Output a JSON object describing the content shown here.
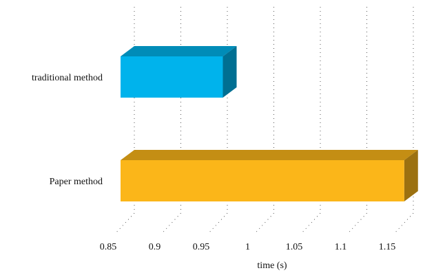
{
  "chart_data": {
    "type": "bar",
    "orientation": "horizontal",
    "style": "3d",
    "categories": [
      "traditional method",
      "Paper method"
    ],
    "values": [
      0.96,
      1.155
    ],
    "base": 0.85,
    "colors": [
      "#00b3ec",
      "#fbb619"
    ],
    "xlabel": "time (s)",
    "ylabel": "",
    "title": "",
    "xlim": [
      0.85,
      1.15
    ],
    "xticks": [
      0.85,
      0.9,
      0.95,
      1,
      1.05,
      1.1,
      1.15
    ],
    "xtick_labels": [
      "0.85",
      "0.9",
      "0.95",
      "1",
      "1.05",
      "1.1",
      "1.15"
    ],
    "grid": true
  }
}
